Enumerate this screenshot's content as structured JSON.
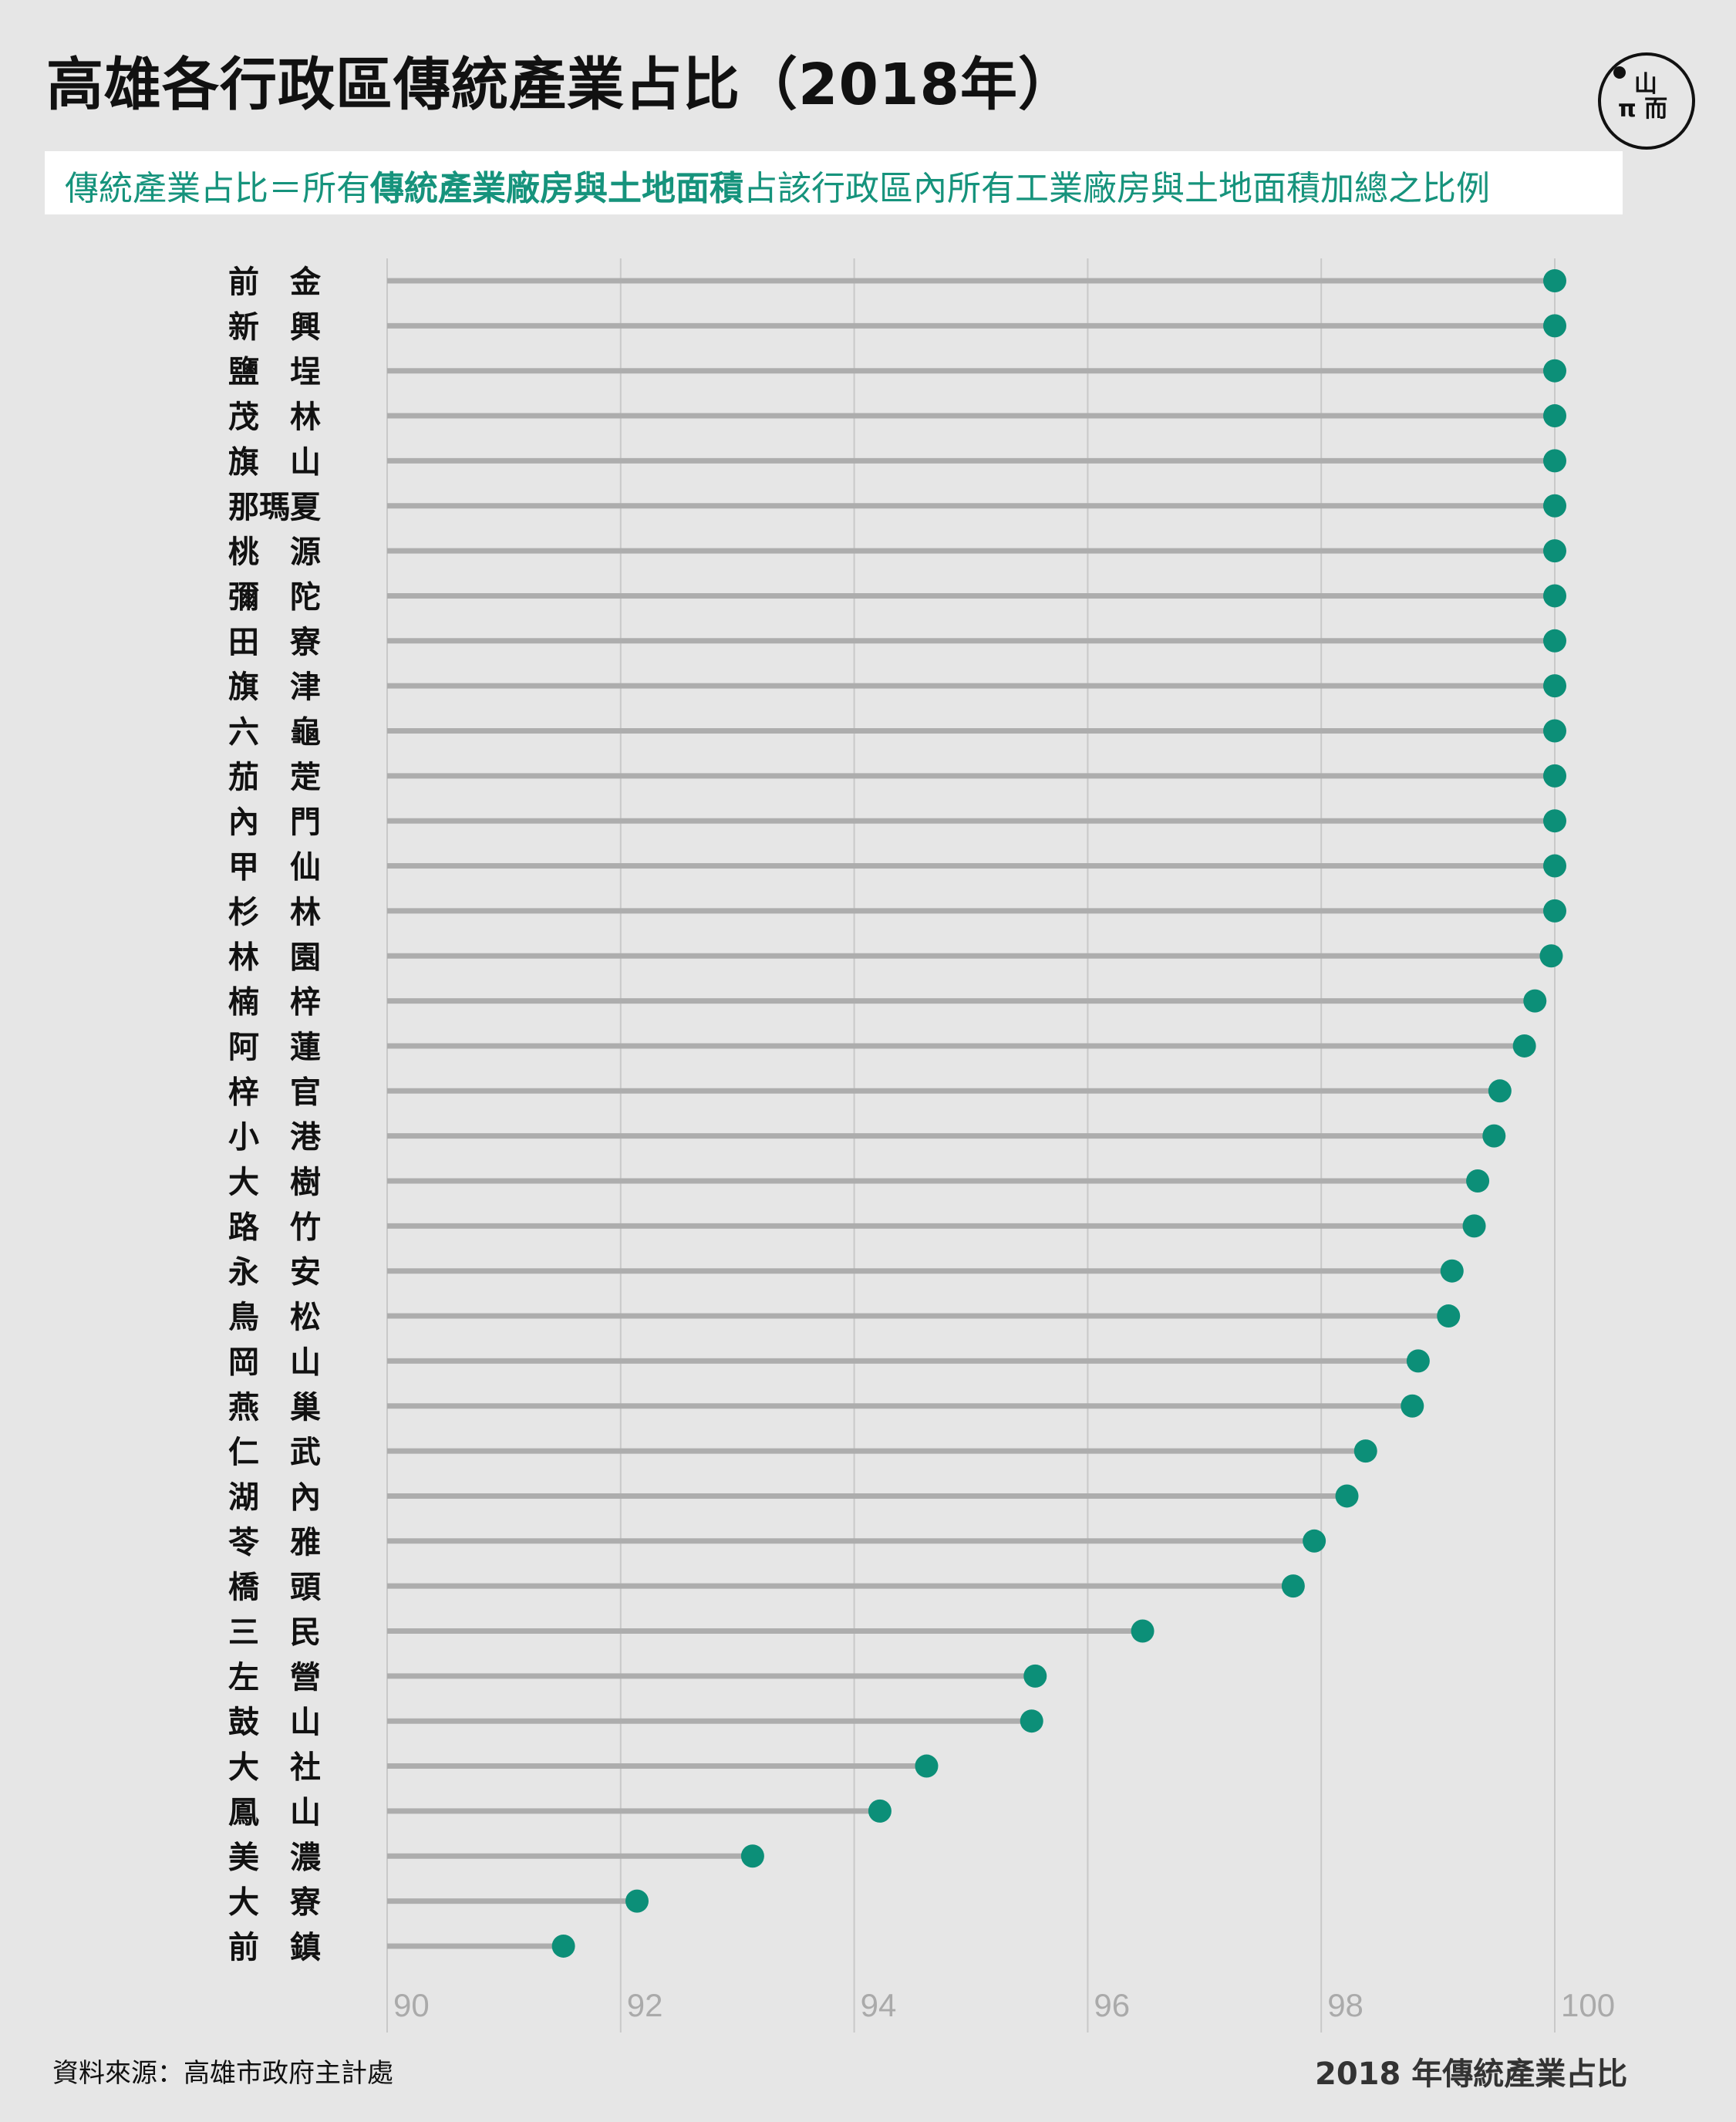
{
  "title": "高雄各行政區傳統產業占比（2018年）",
  "subtitle": {
    "prefix": "傳統產業占比＝所有",
    "bold": "傳統產業廠房與土地面積",
    "suffix": "占該行政區內所有工業廠房與土地面積加總之比例"
  },
  "logo_icon": "initium-logo-icon",
  "colors": {
    "dot": "#0c8f78",
    "stem": "#adadad",
    "grid": "#c9c9c9",
    "tick": "#aaaaaa",
    "label": "#111111"
  },
  "chart_data": {
    "type": "lollipop",
    "xlabel": "2018 年傳統產業占比",
    "xlim": [
      90,
      100
    ],
    "xticks": [
      "90",
      "92",
      "94",
      "96",
      "98",
      "100"
    ],
    "categories": [
      "前　金",
      "新　興",
      "鹽　埕",
      "茂　林",
      "旗　山",
      "那瑪夏",
      "桃　源",
      "彌　陀",
      "田　寮",
      "旗　津",
      "六　龜",
      "茄　萣",
      "內　門",
      "甲　仙",
      "杉　林",
      "林　園",
      "楠　梓",
      "阿　蓮",
      "梓　官",
      "小　港",
      "大　樹",
      "路　竹",
      "永　安",
      "鳥　松",
      "岡　山",
      "燕　巢",
      "仁　武",
      "湖　內",
      "苓　雅",
      "橋　頭",
      "三　民",
      "左　營",
      "鼓　山",
      "大　社",
      "鳳　山",
      "美　濃",
      "大　寮",
      "前　鎮"
    ],
    "values": [
      100,
      100,
      100,
      100,
      100,
      100,
      100,
      100,
      100,
      100,
      100,
      100,
      100,
      100,
      100,
      99.97,
      99.83,
      99.74,
      99.53,
      99.48,
      99.34,
      99.31,
      99.12,
      99.09,
      98.83,
      98.78,
      98.38,
      98.22,
      97.94,
      97.76,
      96.47,
      95.55,
      95.52,
      94.62,
      94.22,
      93.13,
      92.14,
      91.51
    ]
  },
  "source": "資料來源：高雄市政府主計處"
}
